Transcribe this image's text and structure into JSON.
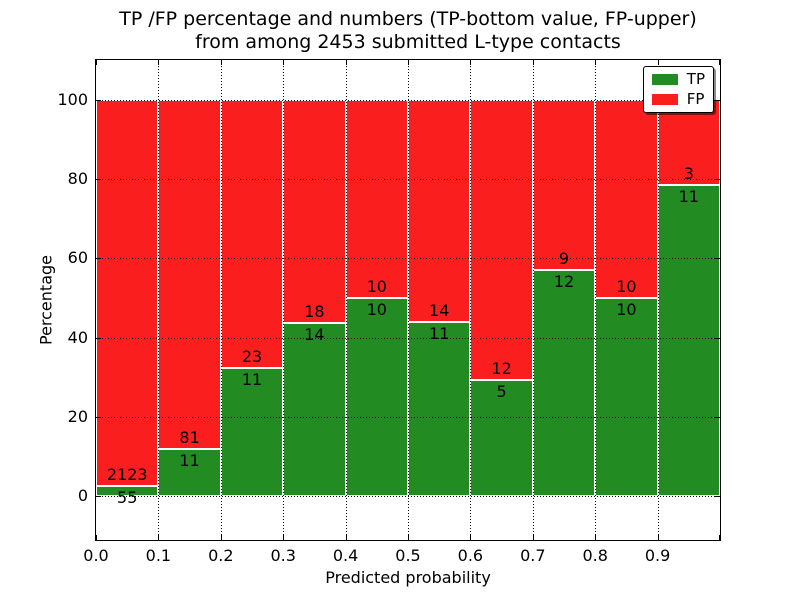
{
  "figure": {
    "title_line1": "TP /FP percentage and numbers (TP-bottom value, FP-upper)",
    "title_line2": "from among 2453 submitted L-type contacts",
    "xlabel": "Predicted probability",
    "ylabel": "Percentage"
  },
  "chart_data": {
    "type": "bar",
    "stacked": true,
    "normalized_to_percent": true,
    "title": "TP /FP percentage and numbers (TP-bottom value, FP-upper) from among 2453 submitted L-type contacts",
    "xlabel": "Predicted probability",
    "ylabel": "Percentage",
    "total_contacts": 2453,
    "categories": [
      "0.0-0.1",
      "0.1-0.2",
      "0.2-0.3",
      "0.3-0.4",
      "0.4-0.5",
      "0.5-0.6",
      "0.6-0.7",
      "0.7-0.8",
      "0.8-0.9",
      "0.9-1.0"
    ],
    "series": [
      {
        "name": "TP",
        "color": "#228b22",
        "counts": [
          55,
          11,
          11,
          14,
          10,
          11,
          5,
          12,
          10,
          11
        ]
      },
      {
        "name": "FP",
        "color": "#fa1e1e",
        "counts": [
          2123,
          81,
          23,
          18,
          10,
          14,
          12,
          9,
          10,
          3
        ]
      }
    ],
    "tp_percent": [
      2.53,
      11.96,
      32.35,
      43.75,
      50.0,
      44.0,
      29.41,
      57.14,
      50.0,
      78.57
    ],
    "x_ticks": [
      "0.0",
      "0.1",
      "0.2",
      "0.3",
      "0.4",
      "0.5",
      "0.6",
      "0.7",
      "0.8",
      "0.9"
    ],
    "y_ticks": [
      "0",
      "20",
      "40",
      "60",
      "80",
      "100"
    ],
    "xlim": [
      0.0,
      1.0
    ],
    "ylim": [
      -11,
      110
    ],
    "grid": "dotted",
    "legend_position": "upper right",
    "label_rule": "FP count above TP/FP boundary, TP count below boundary"
  }
}
